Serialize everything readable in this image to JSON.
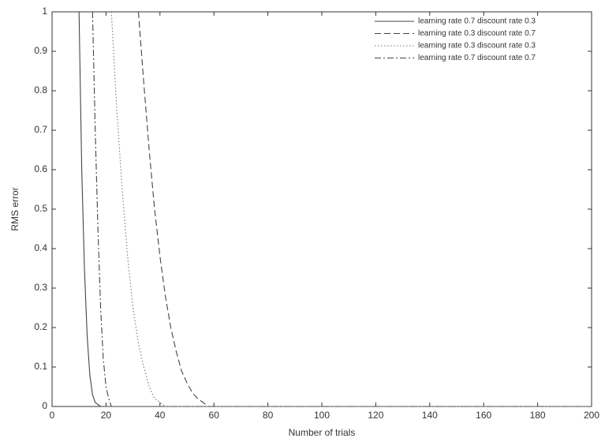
{
  "chart_data": {
    "type": "line",
    "xlabel": "Number of trials",
    "ylabel": "RMS error",
    "xlim": [
      0,
      200
    ],
    "ylim": [
      0,
      1
    ],
    "xticks": [
      0,
      20,
      40,
      60,
      80,
      100,
      120,
      140,
      160,
      180,
      200
    ],
    "yticks": [
      0,
      0.1,
      0.2,
      0.3,
      0.4,
      0.5,
      0.6,
      0.7,
      0.8,
      0.9,
      1
    ],
    "legend": "upper right",
    "series": [
      {
        "name": "learning rate 0.7 discount rate 0.3",
        "color": "#444444",
        "linestyle": "solid",
        "x": [
          10,
          11,
          12,
          13,
          14,
          15,
          16,
          18,
          200
        ],
        "values": [
          1,
          0.6,
          0.35,
          0.18,
          0.08,
          0.03,
          0.01,
          0,
          0
        ]
      },
      {
        "name": "learning rate 0.3 discount rate 0.7",
        "color": "#444444",
        "linestyle": "dashed",
        "x": [
          32,
          34,
          36,
          38,
          40,
          42,
          44,
          46,
          48,
          50,
          52,
          54,
          56,
          58,
          200
        ],
        "values": [
          1,
          0.82,
          0.65,
          0.5,
          0.38,
          0.28,
          0.2,
          0.14,
          0.09,
          0.06,
          0.035,
          0.02,
          0.01,
          0,
          0
        ]
      },
      {
        "name": "learning rate 0.3 discount rate 0.3",
        "color": "#777777",
        "linestyle": "dotted",
        "x": [
          22,
          24,
          26,
          28,
          30,
          32,
          34,
          36,
          38,
          40,
          42,
          200
        ],
        "values": [
          1,
          0.75,
          0.55,
          0.38,
          0.25,
          0.16,
          0.1,
          0.05,
          0.02,
          0.01,
          0,
          0
        ]
      },
      {
        "name": "learning rate 0.7 discount rate 0.7",
        "color": "#444444",
        "linestyle": "dashdot",
        "x": [
          15,
          16,
          17,
          18,
          19,
          20,
          21,
          22,
          200
        ],
        "values": [
          1,
          0.7,
          0.45,
          0.25,
          0.12,
          0.05,
          0.02,
          0,
          0
        ]
      }
    ]
  }
}
